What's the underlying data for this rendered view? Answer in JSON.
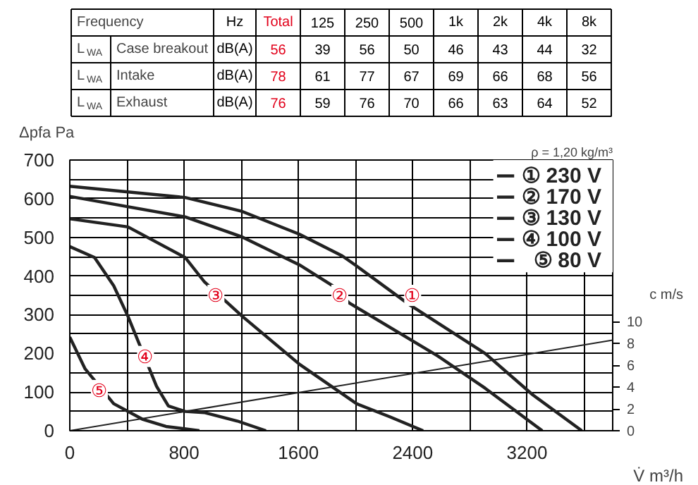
{
  "chart_data": [
    {
      "type": "other",
      "ylabel": "Frequency",
      "categories": [
        "Hz",
        "Total",
        "125",
        "250",
        "500",
        "1k",
        "2k",
        "4k",
        "8k"
      ],
      "y_categories": [
        "L$_{WA}$ Case breakout",
        "L$_{WA}$ Intake",
        "L$_{WA}$ Exhaust"
      ],
      "colors": [
        "#000000",
        "#e2001a",
        "#000000",
        "#000000",
        "#000000",
        "#000000",
        "#000000",
        "#000000",
        "#000000"
      ],
      "cell_labels": [
        [
          "dB(A)",
          "56",
          "39",
          "56",
          "50",
          "46",
          "43",
          "44",
          "32"
        ],
        [
          "dB(A)",
          "78",
          "61",
          "77",
          "67",
          "69",
          "66",
          "68",
          "56"
        ],
        [
          "dB(A)",
          "76",
          "59",
          "76",
          "70",
          "66",
          "63",
          "64",
          "52"
        ]
      ]
    },
    {
      "type": "line",
      "xlabel": "V̇ m³/h",
      "ylabel": "Δpfa Pa",
      "y2label": "c m/s",
      "xlim": [
        0,
        3800
      ],
      "ylim": [
        0,
        700
      ],
      "y2lim": [
        0,
        24.8
      ],
      "xticks": [
        0,
        {
          "value": 400,
          "label": null
        },
        800,
        {
          "value": 1200,
          "label": null
        },
        1600,
        {
          "value": 2000,
          "label": null
        },
        2400,
        {
          "value": 2800,
          "label": null
        },
        3200,
        {
          "value": 3600,
          "label": null
        }
      ],
      "yticks": [
        0,
        {
          "value": 50,
          "label": null
        },
        100,
        {
          "value": 150,
          "label": null
        },
        200,
        {
          "value": 250,
          "label": null
        },
        300,
        {
          "value": 350,
          "label": null
        },
        400,
        {
          "value": 450,
          "label": null
        },
        500,
        {
          "value": 550,
          "label": null
        },
        600,
        {
          "value": 650,
          "label": null
        },
        700
      ],
      "y2ticks": [
        0,
        2,
        4,
        6,
        8,
        10
      ],
      "grid": true,
      "legend": "top right",
      "series": [
        {
          "name": "① 230 V",
          "color": "#222222",
          "x": [
            0,
            807,
            1207,
            1607,
            1907,
            2007,
            2373,
            2907,
            3240,
            3584
          ],
          "values": [
            632,
            603,
            567,
            508,
            452,
            426,
            327,
            200,
            93,
            0
          ]
        },
        {
          "name": "② 170 V",
          "color": "#222222",
          "x": [
            0,
            807,
            1207,
            1607,
            1840,
            1957,
            2573,
            2907,
            3307
          ],
          "values": [
            606,
            553,
            501,
            429,
            375,
            330,
            194,
            110,
            0
          ]
        },
        {
          "name": "③ 130 V",
          "color": "#222222",
          "x": [
            0,
            407,
            807,
            940,
            1207,
            1607,
            2007,
            2240,
            2473
          ],
          "values": [
            548,
            527,
            448,
            386,
            296,
            172,
            70,
            36,
            0
          ]
        },
        {
          "name": "④ 100 V",
          "color": "#222222",
          "x": [
            0,
            173,
            307,
            407,
            607,
            690,
            807,
            940,
            1173,
            1373
          ],
          "values": [
            476,
            448,
            375,
            296,
            115,
            64,
            50,
            47,
            25,
            0
          ]
        },
        {
          "name": "⑤ 80 V",
          "color": "#222222",
          "x": [
            0,
            107,
            307,
            507,
            673,
            907
          ],
          "values": [
            242,
            160,
            70,
            30,
            11,
            0
          ]
        },
        {
          "color": "#222222",
          "axis": "y2",
          "x": [
            0,
            3800
          ],
          "values": [
            0,
            8.3
          ]
        }
      ],
      "annotations": [
        {
          "text": "①",
          "x": 2400,
          "y": 350
        },
        {
          "text": "②",
          "x": 1890,
          "y": 350
        },
        {
          "text": "③",
          "x": 1023,
          "y": 350
        },
        {
          "text": "④",
          "x": 530,
          "y": 192
        },
        {
          "text": "⑤",
          "x": 207,
          "y": 104
        },
        "ρ = 1,20 kg/m³"
      ]
    }
  ]
}
